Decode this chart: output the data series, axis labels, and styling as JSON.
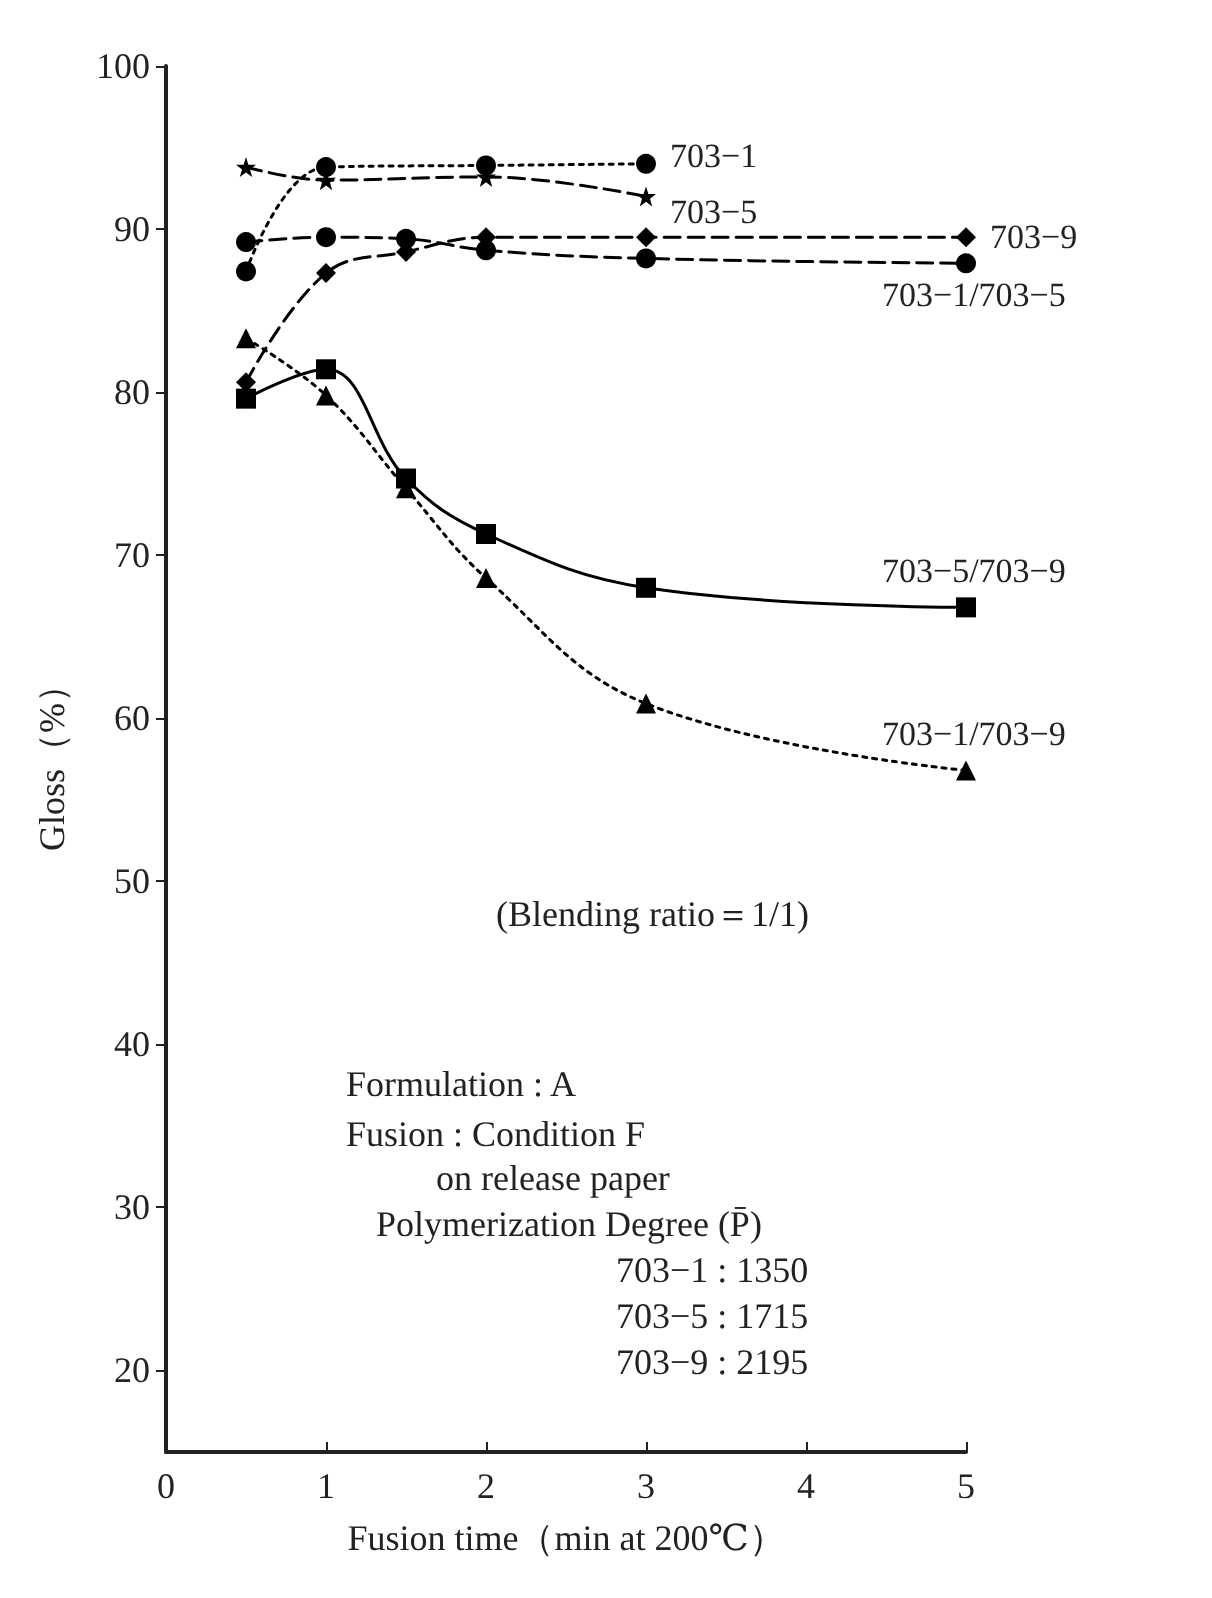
{
  "chart_data": {
    "type": "line",
    "xlabel": "Fusion time（min at 200℃）",
    "ylabel": "Gloss（%）",
    "xlim": [
      0,
      5
    ],
    "xticks": [
      0,
      1,
      2,
      3,
      4,
      5
    ],
    "ylim": [
      15,
      100
    ],
    "yticks": [
      20,
      30,
      40,
      50,
      60,
      70,
      80,
      90,
      100
    ],
    "grid": false,
    "legend": false,
    "series": [
      {
        "name": "703−1",
        "color": "#000000",
        "marker": "circle",
        "line_style": "dotted",
        "x": [
          0.5,
          1,
          2,
          3
        ],
        "values": [
          87.4,
          93.8,
          93.9,
          94
        ]
      },
      {
        "name": "703−5",
        "color": "#000000",
        "marker": "star",
        "line_style": "dashed",
        "x": [
          0.5,
          1,
          2,
          3
        ],
        "values": [
          93.8,
          93,
          93.2,
          92
        ]
      },
      {
        "name": "703−9",
        "color": "#000000",
        "marker": "diamond",
        "line_style": "dashed",
        "x": [
          0.5,
          1,
          1.5,
          2,
          3,
          5
        ],
        "values": [
          80.6,
          87.3,
          88.6,
          89.5,
          89.5,
          89.5
        ]
      },
      {
        "name": "703−1/703−5",
        "color": "#000000",
        "marker": "circle",
        "line_style": "dashed",
        "x": [
          0.5,
          1,
          1.5,
          2,
          3,
          5
        ],
        "values": [
          89.2,
          89.5,
          89.4,
          88.7,
          88.2,
          87.9
        ]
      },
      {
        "name": "703−5/703−9",
        "color": "#000000",
        "marker": "square",
        "line_style": "solid",
        "x": [
          0.5,
          1,
          1.5,
          2,
          3,
          5
        ],
        "values": [
          79.6,
          81.4,
          74.7,
          71.3,
          68.0,
          66.8
        ]
      },
      {
        "name": "703−1/703−9",
        "color": "#000000",
        "marker": "triangle",
        "line_style": "dotted",
        "x": [
          0.5,
          1,
          1.5,
          2,
          3,
          5
        ],
        "values": [
          83.3,
          79.8,
          74.1,
          68.6,
          60.9,
          56.8
        ]
      }
    ],
    "annotations": [
      "(Blending ratio＝1/1)",
      "Formulation : A",
      "Fusion : Condition F",
      "on release paper",
      "Polymerization Degree (P̄)",
      "703−1 : 1350",
      "703−5 : 1715",
      "703−9 : 2195"
    ]
  }
}
